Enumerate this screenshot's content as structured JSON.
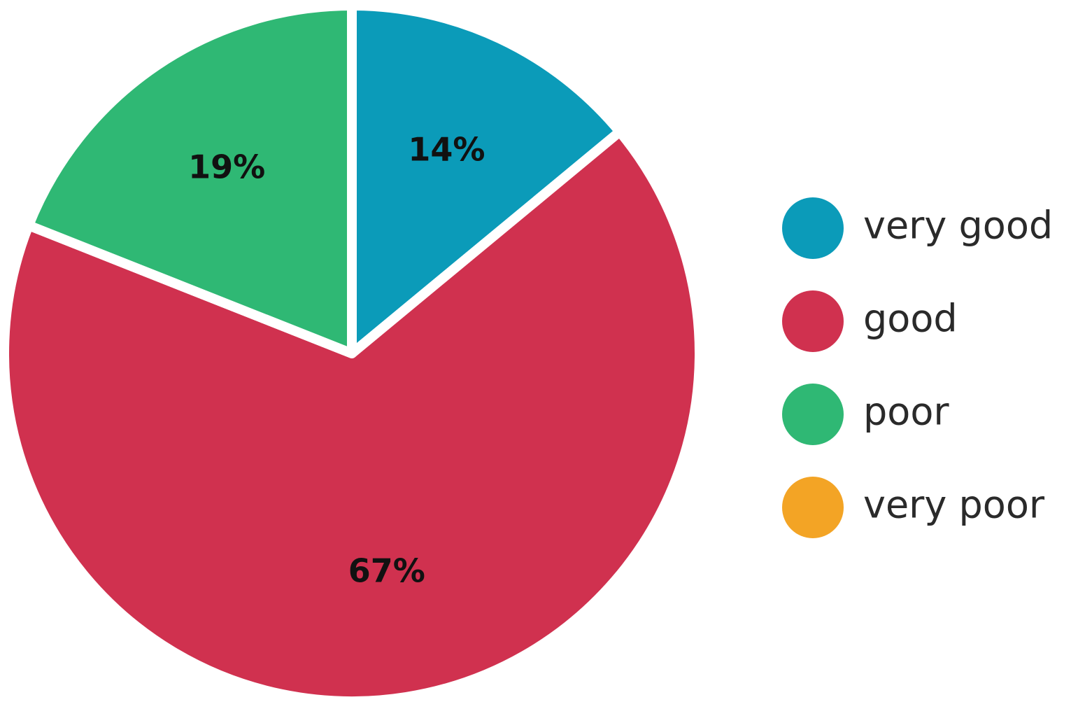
{
  "chart_data": {
    "type": "pie",
    "start": "12 o'clock",
    "direction": "clockwise",
    "slices": [
      {
        "label": "very good",
        "value": 14,
        "value_label": "14%",
        "color": "#0b9bb9"
      },
      {
        "label": "good",
        "value": 67,
        "value_label": "67%",
        "color": "#d0314f"
      },
      {
        "label": "poor",
        "value": 19,
        "value_label": "19%",
        "color": "#2fb874"
      },
      {
        "label": "very poor",
        "value": 0,
        "value_label": "",
        "color": "#f3a425"
      }
    ],
    "legend": {
      "position": "right",
      "items": [
        "very good",
        "good",
        "poor",
        "very poor"
      ]
    }
  }
}
